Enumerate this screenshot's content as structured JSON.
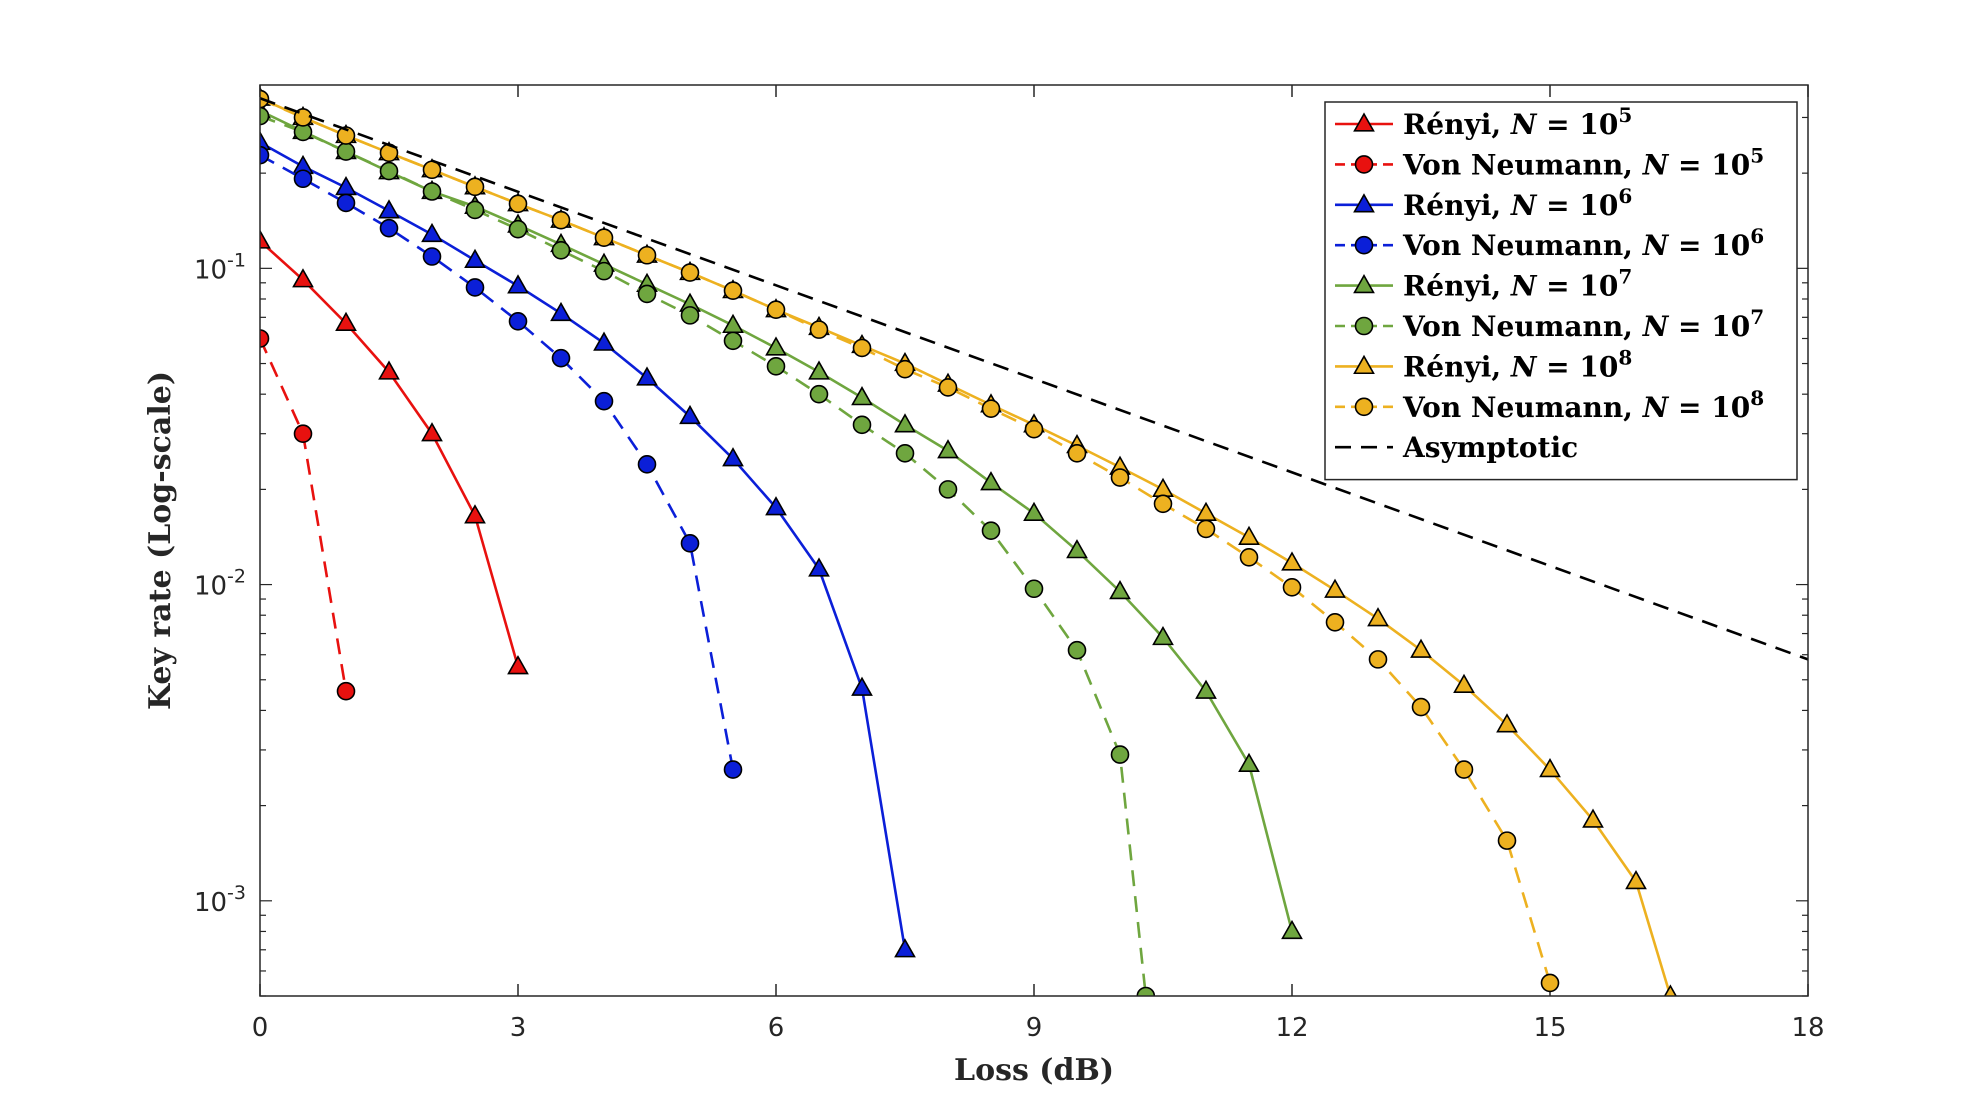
{
  "chart_data": {
    "type": "line",
    "title": "",
    "xlabel": "Loss (dB)",
    "ylabel": "Key rate (Log-scale)",
    "xlim": [
      0,
      18
    ],
    "ylim": [
      0.0005,
      0.38
    ],
    "yscale": "log",
    "xticks": [
      0,
      3,
      6,
      9,
      12,
      15,
      18
    ],
    "yticks": [
      {
        "value": 0.1,
        "base": "10",
        "exp": "-1"
      },
      {
        "value": 0.01,
        "base": "10",
        "exp": "-2"
      },
      {
        "value": 0.001,
        "base": "10",
        "exp": "-3"
      }
    ],
    "legend_position": "top-right",
    "series": [
      {
        "name": "Rényi, N = 10^5",
        "label_prefix": "Rényi, ",
        "label_var": "N",
        "label_eq": " = 10",
        "label_exp": "5",
        "color": "#e8110f",
        "dash": "solid",
        "marker": "triangle",
        "x": [
          0,
          0.5,
          1,
          1.5,
          2,
          2.5,
          3
        ],
        "y": [
          0.122,
          0.092,
          0.067,
          0.047,
          0.03,
          0.0165,
          0.0055
        ]
      },
      {
        "name": "Von Neumann, N = 10^5",
        "label_prefix": "Von Neumann, ",
        "label_var": "N",
        "label_eq": " = 10",
        "label_exp": "5",
        "color": "#e8110f",
        "dash": "dashed",
        "marker": "circle",
        "x": [
          0,
          0.5,
          1
        ],
        "y": [
          0.06,
          0.03,
          0.0046
        ]
      },
      {
        "name": "Rényi, N = 10^6",
        "label_prefix": "Rényi, ",
        "label_var": "N",
        "label_eq": " = 10",
        "label_exp": "6",
        "color": "#0b1fd8",
        "dash": "solid",
        "marker": "triangle",
        "x": [
          0,
          0.5,
          1,
          1.5,
          2,
          2.5,
          3,
          3.5,
          4,
          4.5,
          5,
          5.5,
          6,
          6.5,
          7,
          7.5
        ],
        "y": [
          0.25,
          0.21,
          0.18,
          0.152,
          0.128,
          0.106,
          0.088,
          0.072,
          0.058,
          0.045,
          0.034,
          0.025,
          0.0175,
          0.0112,
          0.0047,
          0.0007
        ]
      },
      {
        "name": "Von Neumann, N = 10^6",
        "label_prefix": "Von Neumann, ",
        "label_var": "N",
        "label_eq": " = 10",
        "label_exp": "6",
        "color": "#0b1fd8",
        "dash": "dashed",
        "marker": "circle",
        "x": [
          0,
          0.5,
          1,
          1.5,
          2,
          2.5,
          3,
          3.5,
          4,
          4.5,
          5,
          5.5
        ],
        "y": [
          0.228,
          0.192,
          0.161,
          0.134,
          0.109,
          0.087,
          0.068,
          0.052,
          0.038,
          0.024,
          0.0135,
          0.0026
        ]
      },
      {
        "name": "Rényi, N = 10^7",
        "label_prefix": "Rényi, ",
        "label_var": "N",
        "label_eq": " = 10",
        "label_exp": "7",
        "color": "#6fa63f",
        "dash": "solid",
        "marker": "triangle",
        "x": [
          0,
          0.5,
          1,
          1.5,
          2,
          2.5,
          3,
          3.5,
          4,
          4.5,
          5,
          5.5,
          6,
          6.5,
          7,
          7.5,
          8,
          8.5,
          9,
          9.5,
          10,
          10.5,
          11,
          11.5,
          12
        ],
        "y": [
          0.315,
          0.271,
          0.234,
          0.202,
          0.175,
          0.157,
          0.137,
          0.119,
          0.103,
          0.089,
          0.077,
          0.066,
          0.056,
          0.047,
          0.039,
          0.032,
          0.0265,
          0.021,
          0.0168,
          0.0128,
          0.0095,
          0.0068,
          0.0046,
          0.0027,
          0.0008
        ]
      },
      {
        "name": "Von Neumann, N = 10^7",
        "label_prefix": "Von Neumann, ",
        "label_var": "N",
        "label_eq": " = 10",
        "label_exp": "7",
        "color": "#6fa63f",
        "dash": "dashed",
        "marker": "circle",
        "x": [
          0,
          0.5,
          1,
          1.5,
          2,
          2.5,
          3,
          3.5,
          4,
          4.5,
          5,
          5.5,
          6,
          6.5,
          7,
          7.5,
          8,
          8.5,
          9,
          9.5,
          10,
          10.3
        ],
        "y": [
          0.303,
          0.27,
          0.234,
          0.203,
          0.175,
          0.153,
          0.133,
          0.114,
          0.098,
          0.083,
          0.071,
          0.059,
          0.049,
          0.04,
          0.032,
          0.026,
          0.02,
          0.0148,
          0.0097,
          0.0062,
          0.0029,
          0.0005
        ]
      },
      {
        "name": "Rényi, N = 10^8",
        "label_prefix": "Rényi, ",
        "label_var": "N",
        "label_eq": " = 10",
        "label_exp": "8",
        "color": "#edb120",
        "dash": "solid",
        "marker": "triangle",
        "x": [
          0,
          0.5,
          1,
          1.5,
          2,
          2.5,
          3,
          3.5,
          4,
          4.5,
          5,
          5.5,
          6,
          6.5,
          7,
          7.5,
          8,
          8.5,
          9,
          9.5,
          10,
          10.5,
          11,
          11.5,
          12,
          12.5,
          13,
          13.5,
          14,
          14.5,
          15,
          15.5,
          16,
          16.4
        ],
        "y": [
          0.345,
          0.3,
          0.263,
          0.232,
          0.205,
          0.181,
          0.16,
          0.142,
          0.125,
          0.11,
          0.097,
          0.085,
          0.074,
          0.065,
          0.057,
          0.05,
          0.043,
          0.037,
          0.032,
          0.0275,
          0.0235,
          0.02,
          0.0168,
          0.0141,
          0.0117,
          0.0096,
          0.0078,
          0.0062,
          0.0048,
          0.0036,
          0.0026,
          0.0018,
          0.00115,
          0.0005
        ]
      },
      {
        "name": "Von Neumann, N = 10^8",
        "label_prefix": "Von Neumann, ",
        "label_var": "N",
        "label_eq": " = 10",
        "label_exp": "8",
        "color": "#edb120",
        "dash": "dashed",
        "marker": "circle",
        "x": [
          0,
          0.5,
          1,
          1.5,
          2,
          2.5,
          3,
          3.5,
          4,
          4.5,
          5,
          5.5,
          6,
          6.5,
          7,
          7.5,
          8,
          8.5,
          9,
          9.5,
          10,
          10.5,
          11,
          11.5,
          12,
          12.5,
          13,
          13.5,
          14,
          14.5,
          15
        ],
        "y": [
          0.343,
          0.3,
          0.263,
          0.232,
          0.205,
          0.181,
          0.16,
          0.142,
          0.125,
          0.11,
          0.097,
          0.085,
          0.074,
          0.064,
          0.056,
          0.048,
          0.042,
          0.036,
          0.031,
          0.026,
          0.0218,
          0.018,
          0.015,
          0.0122,
          0.0098,
          0.0076,
          0.0058,
          0.0041,
          0.0026,
          0.00155,
          0.00055
        ]
      },
      {
        "name": "Asymptotic",
        "label_prefix": "Asymptotic",
        "label_var": "",
        "label_eq": "",
        "label_exp": "",
        "color": "#000000",
        "dash": "dashed",
        "marker": "none",
        "x": [
          0,
          18
        ],
        "y": [
          0.345,
          0.0058
        ]
      }
    ]
  }
}
